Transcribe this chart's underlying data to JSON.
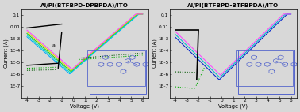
{
  "fig_width": 3.78,
  "fig_height": 1.42,
  "dpi": 100,
  "bg_color": "#d8d8d8",
  "left_title": "Al/PI(BTFBPD-DPBPDA)/ITO",
  "right_title": "Al/PI(BTFBPD-BTFBPDA)/ITO",
  "xlabel": "Voltage (V)",
  "ylabel": "Current (A)",
  "xlim": [
    -4.5,
    6.5
  ],
  "ylim": [
    1e-08,
    0.3
  ],
  "ytick_vals": [
    1e-07,
    1e-06,
    1e-05,
    0.0001,
    0.001,
    0.01,
    0.1
  ],
  "ytick_labels": [
    "1E-7",
    "1E-6",
    "1E-5",
    "1E-4",
    "1E-3",
    "0.01",
    "0.1"
  ],
  "xticks": [
    -4,
    -3,
    -2,
    -1,
    0,
    1,
    2,
    3,
    4,
    5,
    6
  ],
  "title_fs": 5.2,
  "label_fs": 4.8,
  "tick_fs": 4.2,
  "mol_color": "#5566cc",
  "plot1": {
    "HRS_colors": [
      "#00aaff",
      "#00ddcc",
      "#22cc22",
      "#dddd00",
      "#ff44ff"
    ],
    "LRS_colors": [
      "#006600",
      "#33aa33"
    ],
    "black": "#000000"
  },
  "plot2": {
    "HRS_colors": [
      "#0022cc",
      "#00bbcc",
      "#ff44ff"
    ],
    "LRS_colors": [
      "#006600",
      "#33aa33"
    ],
    "black": "#000000"
  }
}
